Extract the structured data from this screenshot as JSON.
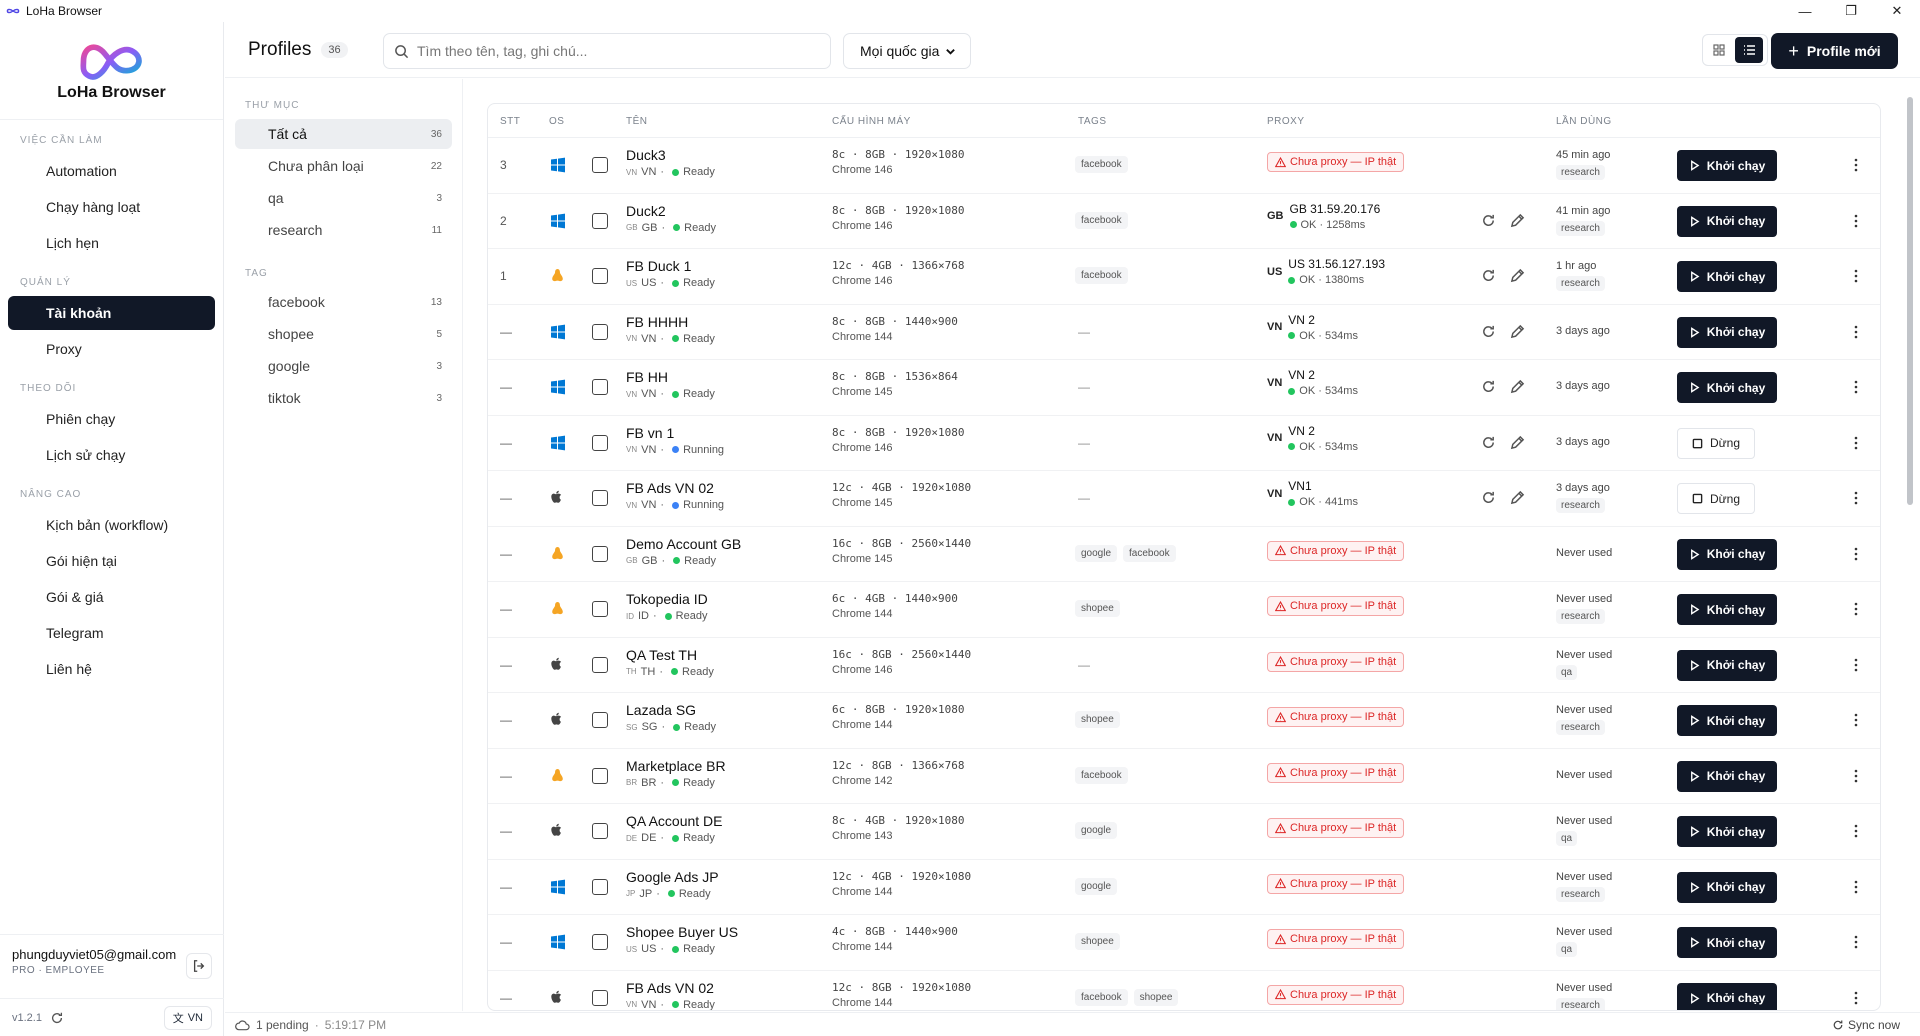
{
  "window": {
    "title": "LoHa Browser"
  },
  "brand": {
    "name": "LoHa Browser"
  },
  "sidebar": {
    "sections": [
      {
        "label": "VIỆC CẦN LÀM",
        "items": [
          {
            "label": "Automation",
            "icon": "automation-icon"
          },
          {
            "label": "Chạy hàng loạt",
            "icon": "layers-icon"
          },
          {
            "label": "Lịch hẹn",
            "icon": "calendar-icon"
          }
        ]
      },
      {
        "label": "QUẢN LÝ",
        "items": [
          {
            "label": "Tài khoản",
            "icon": "users-icon",
            "active": true
          },
          {
            "label": "Proxy",
            "icon": "globe-icon"
          }
        ]
      },
      {
        "label": "THEO DÕI",
        "items": [
          {
            "label": "Phiên chạy",
            "icon": "activity-icon"
          },
          {
            "label": "Lịch sử chạy",
            "icon": "history-icon"
          }
        ]
      },
      {
        "label": "NÂNG CAO",
        "items": [
          {
            "label": "Kịch bản (workflow)",
            "icon": "workflow-icon"
          },
          {
            "label": "Gói hiện tại",
            "icon": "check-circle-icon"
          },
          {
            "label": "Gói & giá",
            "icon": "credit-card-icon"
          },
          {
            "label": "Telegram",
            "icon": "send-icon"
          },
          {
            "label": "Liên hệ",
            "icon": "phone-icon"
          }
        ]
      }
    ],
    "user": {
      "email": "phungduyviet05@gmail.com",
      "plan": "PRO · EMPLOYEE"
    },
    "version": "v1.2.1",
    "language": "VN"
  },
  "header": {
    "title": "Profiles",
    "count": "36",
    "search_placeholder": "Tìm theo tên, tag, ghi chú...",
    "country_select": "Mọi quốc gia",
    "new_profile_label": "Profile mới"
  },
  "folders": {
    "folder_label": "THƯ MỤC",
    "items": [
      {
        "label": "Tất cả",
        "count": "36",
        "active": true
      },
      {
        "label": "Chưa phân loại",
        "count": "22"
      },
      {
        "label": "qa",
        "count": "3"
      },
      {
        "label": "research",
        "count": "11"
      }
    ],
    "tag_label": "TAG",
    "tags": [
      {
        "label": "facebook",
        "count": "13"
      },
      {
        "label": "shopee",
        "count": "5"
      },
      {
        "label": "google",
        "count": "3"
      },
      {
        "label": "tiktok",
        "count": "3"
      }
    ]
  },
  "table": {
    "columns": {
      "stt": "STT",
      "os": "OS",
      "name": "TÊN",
      "hw": "CẤU HÌNH MÁY",
      "tags": "TAGS",
      "proxy": "PROXY",
      "last": "LẦN DÙNG"
    },
    "labels": {
      "no_proxy": "Chưa proxy — IP thật",
      "run": "Khởi chạy",
      "stop": "Dừng",
      "empty": "—"
    },
    "rows": [
      {
        "stt": "3",
        "os": "windows",
        "name": "Duck3",
        "cc": "VN",
        "country": "VN",
        "status": "Ready",
        "spec": "8c · 8GB · 1920×1080",
        "chrome": "Chrome 146",
        "tags": [
          "facebook"
        ],
        "proxy": null,
        "last": "45 min ago",
        "folder": "research",
        "action": "run"
      },
      {
        "stt": "2",
        "os": "windows",
        "name": "Duck2",
        "cc": "GB",
        "country": "GB",
        "status": "Ready",
        "spec": "8c · 8GB · 1920×1080",
        "chrome": "Chrome 146",
        "tags": [
          "facebook"
        ],
        "proxy": {
          "cc": "GB",
          "ip": "GB 31.59.20.176",
          "st": "OK · 1258ms"
        },
        "last": "41 min ago",
        "folder": "research",
        "action": "run"
      },
      {
        "stt": "1",
        "os": "linux",
        "name": "FB Duck 1",
        "cc": "US",
        "country": "US",
        "status": "Ready",
        "spec": "12c · 4GB · 1366×768",
        "chrome": "Chrome 146",
        "tags": [
          "facebook"
        ],
        "proxy": {
          "cc": "US",
          "ip": "US 31.56.127.193",
          "st": "OK · 1380ms"
        },
        "last": "1 hr ago",
        "folder": "research",
        "action": "run"
      },
      {
        "stt": "—",
        "os": "windows",
        "name": "FB HHHH",
        "cc": "VN",
        "country": "VN",
        "status": "Ready",
        "spec": "8c · 8GB · 1440×900",
        "chrome": "Chrome 144",
        "tags": [],
        "proxy": {
          "cc": "VN",
          "ip": "VN 2",
          "st": "OK · 534ms"
        },
        "last": "3 days ago",
        "folder": null,
        "action": "run"
      },
      {
        "stt": "—",
        "os": "windows",
        "name": "FB HH",
        "cc": "VN",
        "country": "VN",
        "status": "Ready",
        "spec": "8c · 8GB · 1536×864",
        "chrome": "Chrome 145",
        "tags": [],
        "proxy": {
          "cc": "VN",
          "ip": "VN 2",
          "st": "OK · 534ms"
        },
        "last": "3 days ago",
        "folder": null,
        "action": "run"
      },
      {
        "stt": "—",
        "os": "windows",
        "name": "FB vn 1",
        "cc": "VN",
        "country": "VN",
        "status": "Running",
        "spec": "8c · 8GB · 1920×1080",
        "chrome": "Chrome 146",
        "tags": [],
        "proxy": {
          "cc": "VN",
          "ip": "VN 2",
          "st": "OK · 534ms"
        },
        "last": "3 days ago",
        "folder": null,
        "action": "stop"
      },
      {
        "stt": "—",
        "os": "apple",
        "name": "FB Ads VN 02",
        "cc": "VN",
        "country": "VN",
        "status": "Running",
        "spec": "12c · 4GB · 1920×1080",
        "chrome": "Chrome 145",
        "tags": [],
        "proxy": {
          "cc": "VN",
          "ip": "VN1",
          "st": "OK · 441ms"
        },
        "last": "3 days ago",
        "folder": "research",
        "action": "stop"
      },
      {
        "stt": "—",
        "os": "linux",
        "name": "Demo Account GB",
        "cc": "GB",
        "country": "GB",
        "status": "Ready",
        "spec": "16c · 8GB · 2560×1440",
        "chrome": "Chrome 145",
        "tags": [
          "google",
          "facebook"
        ],
        "proxy": null,
        "last": "Never used",
        "folder": null,
        "action": "run"
      },
      {
        "stt": "—",
        "os": "linux",
        "name": "Tokopedia ID",
        "cc": "ID",
        "country": "ID",
        "status": "Ready",
        "spec": "6c · 4GB · 1440×900",
        "chrome": "Chrome 144",
        "tags": [
          "shopee"
        ],
        "proxy": null,
        "last": "Never used",
        "folder": "research",
        "action": "run"
      },
      {
        "stt": "—",
        "os": "apple",
        "name": "QA Test TH",
        "cc": "TH",
        "country": "TH",
        "status": "Ready",
        "spec": "16c · 8GB · 2560×1440",
        "chrome": "Chrome 146",
        "tags": [],
        "proxy": null,
        "last": "Never used",
        "folder": "qa",
        "action": "run"
      },
      {
        "stt": "—",
        "os": "apple",
        "name": "Lazada SG",
        "cc": "SG",
        "country": "SG",
        "status": "Ready",
        "spec": "6c · 8GB · 1920×1080",
        "chrome": "Chrome 144",
        "tags": [
          "shopee"
        ],
        "proxy": null,
        "last": "Never used",
        "folder": "research",
        "action": "run"
      },
      {
        "stt": "—",
        "os": "linux",
        "name": "Marketplace BR",
        "cc": "BR",
        "country": "BR",
        "status": "Ready",
        "spec": "12c · 8GB · 1366×768",
        "chrome": "Chrome 142",
        "tags": [
          "facebook"
        ],
        "proxy": null,
        "last": "Never used",
        "folder": null,
        "action": "run"
      },
      {
        "stt": "—",
        "os": "apple",
        "name": "QA Account DE",
        "cc": "DE",
        "country": "DE",
        "status": "Ready",
        "spec": "8c · 4GB · 1920×1080",
        "chrome": "Chrome 143",
        "tags": [
          "google"
        ],
        "proxy": null,
        "last": "Never used",
        "folder": "qa",
        "action": "run"
      },
      {
        "stt": "—",
        "os": "windows",
        "name": "Google Ads JP",
        "cc": "JP",
        "country": "JP",
        "status": "Ready",
        "spec": "12c · 4GB · 1920×1080",
        "chrome": "Chrome 144",
        "tags": [
          "google"
        ],
        "proxy": null,
        "last": "Never used",
        "folder": "research",
        "action": "run"
      },
      {
        "stt": "—",
        "os": "windows",
        "name": "Shopee Buyer US",
        "cc": "US",
        "country": "US",
        "status": "Ready",
        "spec": "4c · 8GB · 1440×900",
        "chrome": "Chrome 144",
        "tags": [
          "shopee"
        ],
        "proxy": null,
        "last": "Never used",
        "folder": "qa",
        "action": "run"
      },
      {
        "stt": "—",
        "os": "apple",
        "name": "FB Ads VN 02",
        "cc": "VN",
        "country": "VN",
        "status": "Ready",
        "spec": "12c · 8GB · 1920×1080",
        "chrome": "Chrome 144",
        "tags": [
          "facebook",
          "shopee"
        ],
        "proxy": null,
        "last": "Never used",
        "folder": "research",
        "action": "run"
      }
    ]
  },
  "statusbar": {
    "pending": "1 pending",
    "time": "5:19:17 PM",
    "sync": "Sync now"
  },
  "colors": {
    "accent": "#111827",
    "danger": "#dc2626",
    "ok": "#22c55e",
    "running": "#3b82f6",
    "windows": "#0078d4",
    "linux": "#f5a524"
  }
}
